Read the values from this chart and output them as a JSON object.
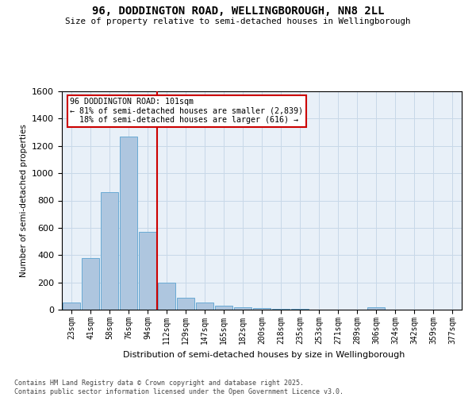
{
  "title": "96, DODDINGTON ROAD, WELLINGBOROUGH, NN8 2LL",
  "subtitle": "Size of property relative to semi-detached houses in Wellingborough",
  "xlabel": "Distribution of semi-detached houses by size in Wellingborough",
  "ylabel": "Number of semi-detached properties",
  "footer_line1": "Contains HM Land Registry data © Crown copyright and database right 2025.",
  "footer_line2": "Contains public sector information licensed under the Open Government Licence v3.0.",
  "bins": [
    "23sqm",
    "41sqm",
    "58sqm",
    "76sqm",
    "94sqm",
    "112sqm",
    "129sqm",
    "147sqm",
    "165sqm",
    "182sqm",
    "200sqm",
    "218sqm",
    "235sqm",
    "253sqm",
    "271sqm",
    "289sqm",
    "306sqm",
    "324sqm",
    "342sqm",
    "359sqm",
    "377sqm"
  ],
  "values": [
    55,
    380,
    860,
    1270,
    570,
    200,
    90,
    55,
    30,
    18,
    10,
    5,
    3,
    2,
    0,
    0,
    20,
    0,
    0,
    0,
    0
  ],
  "bar_color": "#aec6df",
  "bar_edge_color": "#6aaad4",
  "pct_smaller": 81,
  "pct_larger": 18,
  "count_smaller": 2839,
  "count_larger": 616,
  "vline_color": "#cc0000",
  "annotation_box_color": "#cc0000",
  "background_color": "#ffffff",
  "plot_bg_color": "#e8f0f8",
  "grid_color": "#c8d8e8",
  "ylim": [
    0,
    1600
  ],
  "yticks": [
    0,
    200,
    400,
    600,
    800,
    1000,
    1200,
    1400,
    1600
  ],
  "vline_bin_index": 4.5
}
